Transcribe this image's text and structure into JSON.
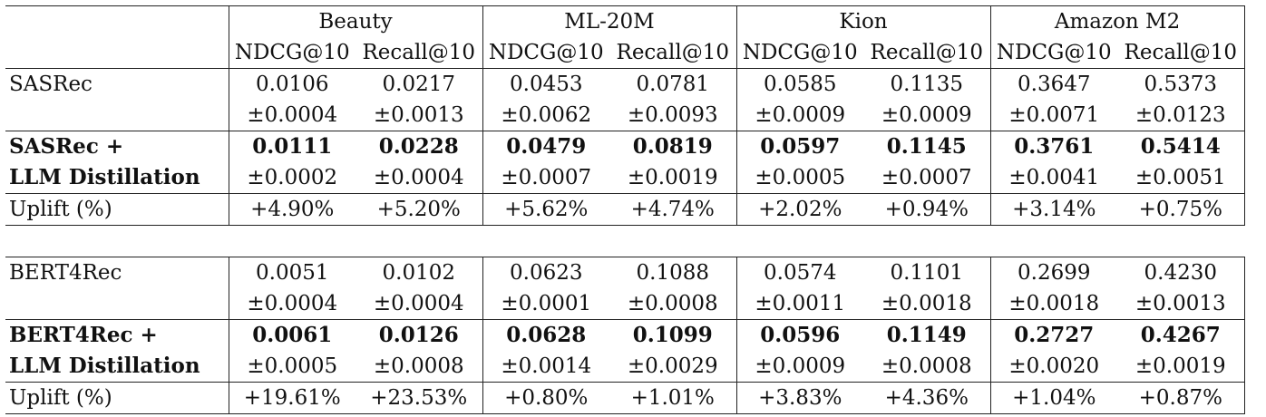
{
  "datasets": [
    "Beauty",
    "ML-20M",
    "Kion",
    "Amazon M2"
  ],
  "metrics": [
    "NDCG@10",
    "Recall@10"
  ],
  "blocks": [
    {
      "baseline": {
        "name": "SASRec",
        "means": [
          "0.0106",
          "0.0217",
          "0.0453",
          "0.0781",
          "0.0585",
          "0.1135",
          "0.3647",
          "0.5373"
        ],
        "stds": [
          "±0.0004",
          "±0.0013",
          "±0.0062",
          "±0.0093",
          "±0.0009",
          "±0.0009",
          "±0.0071",
          "±0.0123"
        ]
      },
      "distill": {
        "name_line1": "SASRec +",
        "name_line2": "LLM Distillation",
        "means": [
          "0.0111",
          "0.0228",
          "0.0479",
          "0.0819",
          "0.0597",
          "0.1145",
          "0.3761",
          "0.5414"
        ],
        "stds": [
          "±0.0002",
          "±0.0004",
          "±0.0007",
          "±0.0019",
          "±0.0005",
          "±0.0007",
          "±0.0041",
          "±0.0051"
        ]
      },
      "uplift": {
        "label": "Uplift (%)",
        "values": [
          "+4.90%",
          "+5.20%",
          "+5.62%",
          "+4.74%",
          "+2.02%",
          "+0.94%",
          "+3.14%",
          "+0.75%"
        ]
      }
    },
    {
      "baseline": {
        "name": "BERT4Rec",
        "means": [
          "0.0051",
          "0.0102",
          "0.0623",
          "0.1088",
          "0.0574",
          "0.1101",
          "0.2699",
          "0.4230"
        ],
        "stds": [
          "±0.0004",
          "±0.0004",
          "±0.0001",
          "±0.0008",
          "±0.0011",
          "±0.0018",
          "±0.0018",
          "±0.0013"
        ]
      },
      "distill": {
        "name_line1": "BERT4Rec +",
        "name_line2": "LLM Distillation",
        "means": [
          "0.0061",
          "0.0126",
          "0.0628",
          "0.1099",
          "0.0596",
          "0.1149",
          "0.2727",
          "0.4267"
        ],
        "stds": [
          "±0.0005",
          "±0.0008",
          "±0.0014",
          "±0.0029",
          "±0.0009",
          "±0.0008",
          "±0.0020",
          "±0.0019"
        ]
      },
      "uplift": {
        "label": "Uplift (%)",
        "values": [
          "+19.61%",
          "+23.53%",
          "+0.80%",
          "+1.01%",
          "+3.83%",
          "+4.36%",
          "+1.04%",
          "+0.87%"
        ]
      }
    }
  ]
}
